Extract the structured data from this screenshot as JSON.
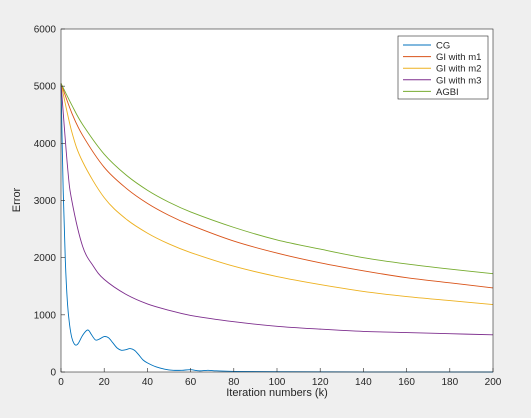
{
  "chart_data": {
    "type": "line",
    "xlabel": "Iteration numbers (k)",
    "ylabel": "Error",
    "xlim": [
      0,
      200
    ],
    "ylim": [
      0,
      6000
    ],
    "xticks": [
      0,
      20,
      40,
      60,
      80,
      100,
      120,
      140,
      160,
      180,
      200
    ],
    "yticks": [
      0,
      1000,
      2000,
      3000,
      4000,
      5000,
      6000
    ],
    "grid": false,
    "legend_position": "top-right",
    "series": [
      {
        "name": "CG",
        "color": "#0072BD",
        "x": [
          0,
          1,
          2,
          3,
          4,
          5,
          6,
          7,
          8,
          10,
          12,
          13,
          14,
          16,
          18,
          20,
          22,
          24,
          26,
          28,
          30,
          32,
          34,
          36,
          38,
          40,
          44,
          48,
          52,
          56,
          60,
          64,
          68,
          72,
          80,
          100,
          140,
          200
        ],
        "y": [
          5050,
          3200,
          1950,
          1200,
          820,
          600,
          500,
          470,
          500,
          640,
          730,
          720,
          660,
          560,
          580,
          620,
          600,
          510,
          420,
          380,
          390,
          410,
          380,
          300,
          210,
          160,
          90,
          50,
          30,
          30,
          40,
          20,
          30,
          20,
          10,
          5,
          2,
          0
        ]
      },
      {
        "name": "GI with m1",
        "color": "#D95319",
        "x": [
          0,
          5,
          10,
          20,
          30,
          40,
          50,
          60,
          80,
          100,
          120,
          140,
          160,
          180,
          200
        ],
        "y": [
          5050,
          4530,
          4140,
          3580,
          3220,
          2950,
          2740,
          2570,
          2290,
          2080,
          1910,
          1770,
          1650,
          1560,
          1470
        ]
      },
      {
        "name": "GI with m2",
        "color": "#EDB120",
        "x": [
          0,
          5,
          10,
          20,
          30,
          40,
          50,
          60,
          80,
          100,
          120,
          140,
          160,
          180,
          200
        ],
        "y": [
          5050,
          4200,
          3680,
          3050,
          2680,
          2430,
          2240,
          2090,
          1850,
          1670,
          1530,
          1410,
          1320,
          1250,
          1180
        ]
      },
      {
        "name": "GI with m3",
        "color": "#7E2F8E",
        "x": [
          0,
          3,
          5,
          10,
          15,
          20,
          30,
          40,
          50,
          60,
          80,
          100,
          120,
          140,
          160,
          180,
          200
        ],
        "y": [
          5050,
          3600,
          3000,
          2200,
          1850,
          1620,
          1360,
          1190,
          1080,
          990,
          880,
          800,
          750,
          710,
          690,
          670,
          650
        ]
      },
      {
        "name": "AGBI",
        "color": "#77AC30",
        "x": [
          0,
          5,
          10,
          20,
          30,
          40,
          50,
          60,
          80,
          100,
          120,
          140,
          160,
          180,
          200
        ],
        "y": [
          5050,
          4670,
          4330,
          3810,
          3450,
          3180,
          2970,
          2800,
          2530,
          2310,
          2150,
          2000,
          1890,
          1800,
          1720
        ]
      }
    ]
  }
}
